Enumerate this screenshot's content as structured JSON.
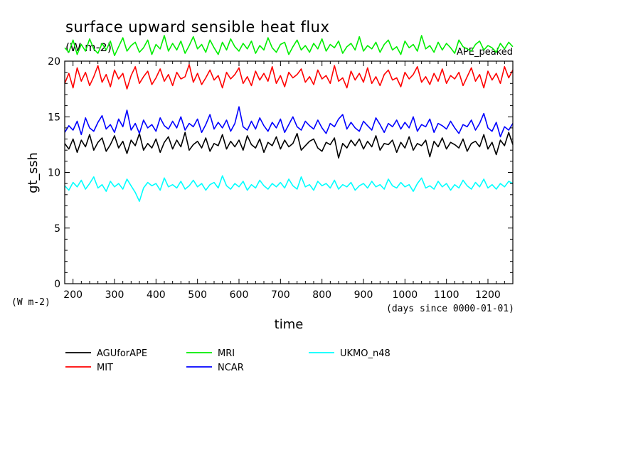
{
  "chart_data": {
    "type": "line",
    "title": "surface upward sensible heat flux",
    "subtitle": "(W m-2)",
    "annotation": "APE_peaked",
    "xlabel": "time",
    "x_units": "(days since 0000-01-01)",
    "ylabel": "gt_ssh",
    "y_units": "(W m-2)",
    "xlim": [
      180,
      1260
    ],
    "ylim": [
      0,
      20
    ],
    "x_ticks": [
      200,
      300,
      400,
      500,
      600,
      700,
      800,
      900,
      1000,
      1100,
      1200
    ],
    "y_ticks": [
      0,
      5,
      10,
      15,
      20
    ],
    "grid": false,
    "legend_position": "below",
    "x": [
      180,
      190,
      200,
      210,
      220,
      230,
      240,
      250,
      260,
      270,
      280,
      290,
      300,
      310,
      320,
      330,
      340,
      350,
      360,
      370,
      380,
      390,
      400,
      410,
      420,
      430,
      440,
      450,
      460,
      470,
      480,
      490,
      500,
      510,
      520,
      530,
      540,
      550,
      560,
      570,
      580,
      590,
      600,
      610,
      620,
      630,
      640,
      650,
      660,
      670,
      680,
      690,
      700,
      710,
      720,
      730,
      740,
      750,
      760,
      770,
      780,
      790,
      800,
      810,
      820,
      830,
      840,
      850,
      860,
      870,
      880,
      890,
      900,
      910,
      920,
      930,
      940,
      950,
      960,
      970,
      980,
      990,
      1000,
      1010,
      1020,
      1030,
      1040,
      1050,
      1060,
      1070,
      1080,
      1090,
      1100,
      1110,
      1120,
      1130,
      1140,
      1150,
      1160,
      1170,
      1180,
      1190,
      1200,
      1210,
      1220,
      1230,
      1240,
      1250,
      1260
    ],
    "series": [
      {
        "name": "AGUforAPE",
        "color": "#000000",
        "values": [
          12.6,
          12.1,
          13.0,
          11.8,
          12.9,
          12.3,
          13.4,
          12.0,
          12.7,
          13.1,
          11.9,
          12.5,
          13.3,
          12.2,
          12.8,
          11.7,
          12.9,
          12.4,
          13.5,
          12.0,
          12.6,
          12.2,
          13.0,
          11.8,
          12.7,
          13.2,
          12.1,
          12.9,
          12.3,
          13.6,
          12.0,
          12.5,
          12.8,
          12.2,
          13.1,
          11.9,
          12.6,
          12.4,
          13.4,
          12.1,
          12.8,
          12.3,
          12.9,
          12.0,
          13.3,
          12.5,
          12.2,
          13.0,
          11.8,
          12.7,
          12.4,
          13.2,
          12.1,
          12.9,
          12.3,
          12.6,
          13.5,
          12.0,
          12.4,
          12.8,
          13.0,
          12.2,
          11.9,
          12.7,
          12.5,
          13.1,
          11.3,
          12.6,
          12.2,
          12.9,
          12.4,
          13.0,
          12.1,
          12.8,
          12.3,
          13.3,
          12.0,
          12.6,
          12.5,
          12.9,
          11.8,
          12.7,
          12.2,
          13.2,
          12.0,
          12.6,
          12.4,
          12.9,
          11.4,
          12.8,
          12.3,
          13.1,
          12.1,
          12.7,
          12.5,
          12.2,
          13.0,
          11.9,
          12.6,
          12.8,
          12.3,
          13.4,
          12.1,
          12.7,
          11.6,
          12.9,
          12.4,
          13.6,
          12.5
        ]
      },
      {
        "name": "MIT",
        "color": "#ff0000",
        "values": [
          18.0,
          18.9,
          17.6,
          19.4,
          18.2,
          19.0,
          17.8,
          18.6,
          19.6,
          18.1,
          18.8,
          17.7,
          19.2,
          18.4,
          18.9,
          17.5,
          18.7,
          19.5,
          18.0,
          18.6,
          19.1,
          17.9,
          18.5,
          19.3,
          18.2,
          18.8,
          17.8,
          19.0,
          18.4,
          18.6,
          19.7,
          18.1,
          18.9,
          17.9,
          18.5,
          19.2,
          18.3,
          18.7,
          17.6,
          19.0,
          18.4,
          18.8,
          19.4,
          18.0,
          18.6,
          17.8,
          19.1,
          18.3,
          18.9,
          18.2,
          19.5,
          18.0,
          18.7,
          17.7,
          19.0,
          18.5,
          18.8,
          19.3,
          18.1,
          18.6,
          17.9,
          19.2,
          18.4,
          18.7,
          18.0,
          19.6,
          18.2,
          18.5,
          17.6,
          19.1,
          18.3,
          18.9,
          18.1,
          19.4,
          18.0,
          18.6,
          17.8,
          18.8,
          19.2,
          18.3,
          18.5,
          17.7,
          19.0,
          18.4,
          18.8,
          19.5,
          18.1,
          18.6,
          17.9,
          18.9,
          18.2,
          19.3,
          18.0,
          18.7,
          18.4,
          19.0,
          17.8,
          18.6,
          19.4,
          18.2,
          18.8,
          17.6,
          19.1,
          18.3,
          18.9,
          18.0,
          19.5,
          18.5,
          19.2
        ]
      },
      {
        "name": "MRI",
        "color": "#00ee00",
        "values": [
          21.2,
          20.8,
          21.9,
          20.6,
          21.5,
          20.9,
          22.0,
          21.1,
          20.7,
          21.6,
          21.0,
          21.8,
          20.5,
          21.3,
          22.1,
          20.9,
          21.4,
          21.7,
          20.8,
          21.2,
          21.9,
          20.6,
          21.5,
          21.1,
          22.3,
          20.9,
          21.6,
          21.0,
          21.8,
          20.7,
          21.4,
          22.2,
          21.1,
          21.5,
          20.8,
          21.9,
          21.2,
          20.6,
          21.7,
          21.0,
          22.0,
          21.3,
          20.9,
          21.6,
          21.1,
          21.8,
          20.7,
          21.4,
          21.0,
          22.1,
          21.2,
          20.8,
          21.5,
          21.7,
          20.6,
          21.3,
          21.9,
          21.0,
          21.4,
          20.8,
          21.6,
          21.1,
          22.0,
          20.9,
          21.5,
          21.2,
          21.8,
          20.7,
          21.3,
          21.6,
          21.0,
          22.2,
          20.9,
          21.4,
          21.1,
          21.7,
          20.8,
          21.5,
          21.9,
          21.0,
          21.3,
          20.6,
          21.8,
          21.2,
          21.5,
          20.9,
          22.3,
          21.1,
          21.4,
          20.8,
          21.7,
          21.0,
          21.6,
          21.2,
          20.7,
          21.9,
          21.3,
          21.1,
          20.9,
          21.5,
          21.8,
          21.0,
          21.4,
          21.2,
          20.8,
          21.6,
          21.1,
          21.7,
          21.3
        ]
      },
      {
        "name": "NCAR",
        "color": "#0000ff",
        "values": [
          13.6,
          14.2,
          13.8,
          14.6,
          13.4,
          14.9,
          14.0,
          13.7,
          14.5,
          15.1,
          13.9,
          14.3,
          13.6,
          14.8,
          14.1,
          15.6,
          13.8,
          14.4,
          13.5,
          14.7,
          14.0,
          14.3,
          13.7,
          14.9,
          14.2,
          13.9,
          14.6,
          14.0,
          15.0,
          13.8,
          14.4,
          14.1,
          14.8,
          13.6,
          14.3,
          15.2,
          13.9,
          14.5,
          14.0,
          14.7,
          13.7,
          14.4,
          15.9,
          14.1,
          13.8,
          14.6,
          13.9,
          14.9,
          14.2,
          13.7,
          14.5,
          14.0,
          14.8,
          13.6,
          14.3,
          15.0,
          14.1,
          13.8,
          14.6,
          14.2,
          13.9,
          14.7,
          14.0,
          13.5,
          14.4,
          14.1,
          14.8,
          15.2,
          13.9,
          14.5,
          14.0,
          13.7,
          14.6,
          14.2,
          13.8,
          14.9,
          14.3,
          13.6,
          14.4,
          14.1,
          14.7,
          13.9,
          14.5,
          14.0,
          15.0,
          13.7,
          14.3,
          14.1,
          14.8,
          13.6,
          14.4,
          14.2,
          13.9,
          14.6,
          14.0,
          13.5,
          14.3,
          14.1,
          14.7,
          13.8,
          14.4,
          15.3,
          14.0,
          13.7,
          14.5,
          13.2,
          14.1,
          13.8,
          14.4
        ]
      },
      {
        "name": "UKMO_n48",
        "color": "#00ffff",
        "values": [
          8.8,
          8.4,
          9.1,
          8.7,
          9.3,
          8.5,
          9.0,
          9.6,
          8.6,
          8.9,
          8.3,
          9.2,
          8.7,
          9.0,
          8.5,
          9.4,
          8.8,
          8.2,
          7.4,
          8.6,
          9.1,
          8.8,
          9.0,
          8.4,
          9.5,
          8.7,
          8.9,
          8.6,
          9.2,
          8.5,
          8.8,
          9.3,
          8.7,
          9.0,
          8.4,
          8.9,
          9.1,
          8.6,
          9.7,
          8.8,
          8.5,
          9.0,
          8.7,
          9.2,
          8.4,
          8.9,
          8.6,
          9.3,
          8.8,
          8.5,
          9.0,
          8.7,
          9.1,
          8.6,
          9.4,
          8.8,
          8.5,
          9.6,
          8.7,
          8.9,
          8.4,
          9.2,
          8.8,
          9.0,
          8.6,
          9.3,
          8.5,
          8.9,
          8.7,
          9.1,
          8.4,
          8.8,
          9.0,
          8.6,
          9.2,
          8.7,
          8.9,
          8.5,
          9.4,
          8.8,
          8.6,
          9.1,
          8.7,
          8.9,
          8.3,
          9.0,
          9.5,
          8.6,
          8.8,
          8.5,
          9.2,
          8.7,
          9.0,
          8.4,
          8.9,
          8.6,
          9.3,
          8.8,
          8.5,
          9.1,
          8.7,
          9.4,
          8.6,
          8.9,
          8.5,
          9.0,
          8.7,
          9.2,
          9.0
        ]
      }
    ]
  }
}
